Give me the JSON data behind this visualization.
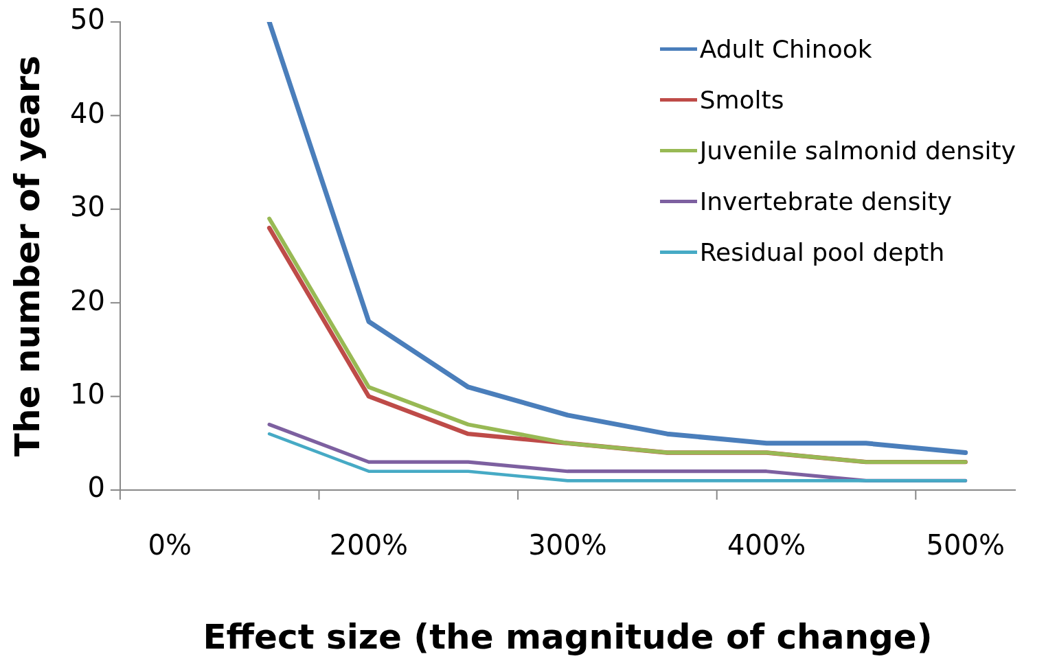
{
  "chart_data": {
    "type": "line",
    "xlabel": "Effect size (the magnitude of change)",
    "ylabel": "The number of years",
    "categories": [
      "0%",
      null,
      "200%",
      null,
      "300%",
      null,
      "400%",
      null,
      "500%"
    ],
    "series": [
      {
        "name": "Adult Chinook",
        "color": "#4a7ebb",
        "values": [
          null,
          50,
          18,
          11,
          8,
          6,
          5,
          5,
          4
        ]
      },
      {
        "name": "Smolts",
        "color": "#be4b48",
        "values": [
          null,
          28,
          10,
          6,
          5,
          4,
          4,
          3,
          3
        ]
      },
      {
        "name": "Juvenile salmonid density",
        "color": "#98b954",
        "values": [
          null,
          29,
          11,
          7,
          5,
          4,
          4,
          3,
          3
        ]
      },
      {
        "name": "Invertebrate density",
        "color": "#7d60a0",
        "values": [
          null,
          7,
          3,
          3,
          2,
          2,
          2,
          1,
          1
        ]
      },
      {
        "name": "Residual pool depth",
        "color": "#46aac5",
        "values": [
          null,
          6,
          2,
          2,
          1,
          1,
          1,
          1,
          1
        ]
      }
    ],
    "ylim": [
      0,
      50
    ],
    "yticks": [
      0,
      10,
      20,
      30,
      40,
      50
    ],
    "grid": false,
    "legend": "top right",
    "marker": "none",
    "line_style": "solid"
  }
}
